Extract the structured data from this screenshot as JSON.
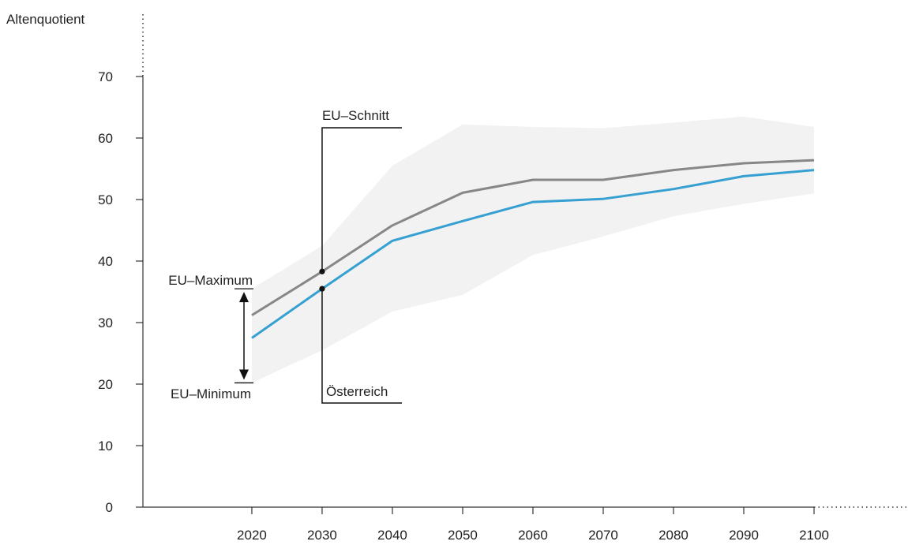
{
  "chart_data": {
    "type": "line",
    "title": "",
    "ylabel": "Altenquotient",
    "xlabel": "",
    "x": [
      2020,
      2030,
      2040,
      2050,
      2060,
      2070,
      2080,
      2090,
      2100
    ],
    "xlim": [
      2004.5,
      2100
    ],
    "ylim": [
      0,
      70
    ],
    "yticks": [
      0,
      10,
      20,
      30,
      40,
      50,
      60,
      70
    ],
    "grid": false,
    "series": [
      {
        "name": "EU–Schnitt",
        "color": "#878787",
        "values": [
          31.2,
          38.3,
          45.8,
          51.1,
          53.2,
          53.2,
          54.8,
          55.9,
          56.4
        ]
      },
      {
        "name": "Österreich",
        "color": "#35a0d1",
        "values": [
          27.5,
          35.5,
          43.3,
          46.5,
          49.6,
          50.1,
          51.7,
          53.8,
          54.8
        ]
      }
    ],
    "band": {
      "color": "#f2f2f2",
      "x": [
        2020,
        2030,
        2040,
        2050,
        2060,
        2070,
        2080,
        2090,
        2100
      ],
      "upper": [
        35.5,
        42.5,
        55.5,
        62.2,
        61.8,
        61.6,
        62.5,
        63.5,
        61.8
      ],
      "lower": [
        20.2,
        25.5,
        31.8,
        34.5,
        41.0,
        44.0,
        47.3,
        49.3,
        51.0
      ]
    },
    "annotations": {
      "eu_avg": {
        "label": "EU–Schnitt",
        "x": 2030,
        "y": 38.3
      },
      "austria": {
        "label": "Österreich",
        "x": 2030,
        "y": 35.5
      },
      "eu_max": {
        "label": "EU–Maximum",
        "value": 35.5
      },
      "eu_min": {
        "label": "EU–Minimum",
        "value": 20.2
      }
    }
  }
}
